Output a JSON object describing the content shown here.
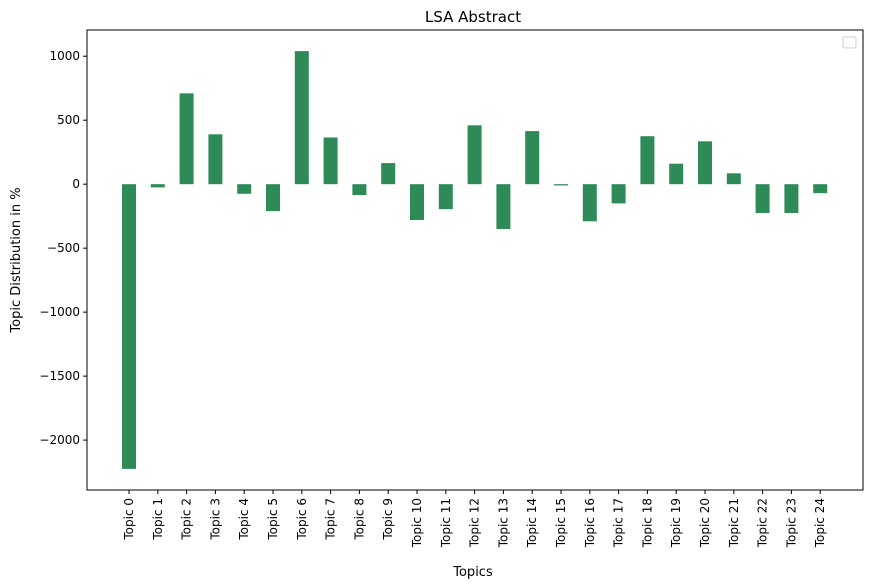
{
  "chart_data": {
    "type": "bar",
    "title": "LSA Abstract",
    "xlabel": "Topics",
    "ylabel": "Topic Distribution in %",
    "categories": [
      "Topic 0",
      "Topic 1",
      "Topic 2",
      "Topic 3",
      "Topic 4",
      "Topic 5",
      "Topic 6",
      "Topic 7",
      "Topic 8",
      "Topic 9",
      "Topic 10",
      "Topic 11",
      "Topic 12",
      "Topic 13",
      "Topic 14",
      "Topic 15",
      "Topic 16",
      "Topic 17",
      "Topic 18",
      "Topic 19",
      "Topic 20",
      "Topic 21",
      "Topic 22",
      "Topic 23",
      "Topic 24"
    ],
    "values": [
      -2225,
      -25,
      710,
      390,
      -75,
      -210,
      1040,
      365,
      -85,
      165,
      -280,
      -195,
      460,
      -350,
      415,
      -10,
      -290,
      -150,
      375,
      160,
      335,
      85,
      -225,
      -225,
      -70
    ],
    "ylim": [
      -2390,
      1205
    ],
    "yticks": [
      -2000,
      -1500,
      -1000,
      -500,
      0,
      500,
      1000
    ],
    "ytick_labels": [
      "−2000",
      "−1500",
      "−1000",
      "−500",
      "0",
      "500",
      "1000"
    ],
    "bar_color": "#2e8b57",
    "grid": false,
    "legend": {
      "position": "upper-right",
      "entries": []
    }
  }
}
